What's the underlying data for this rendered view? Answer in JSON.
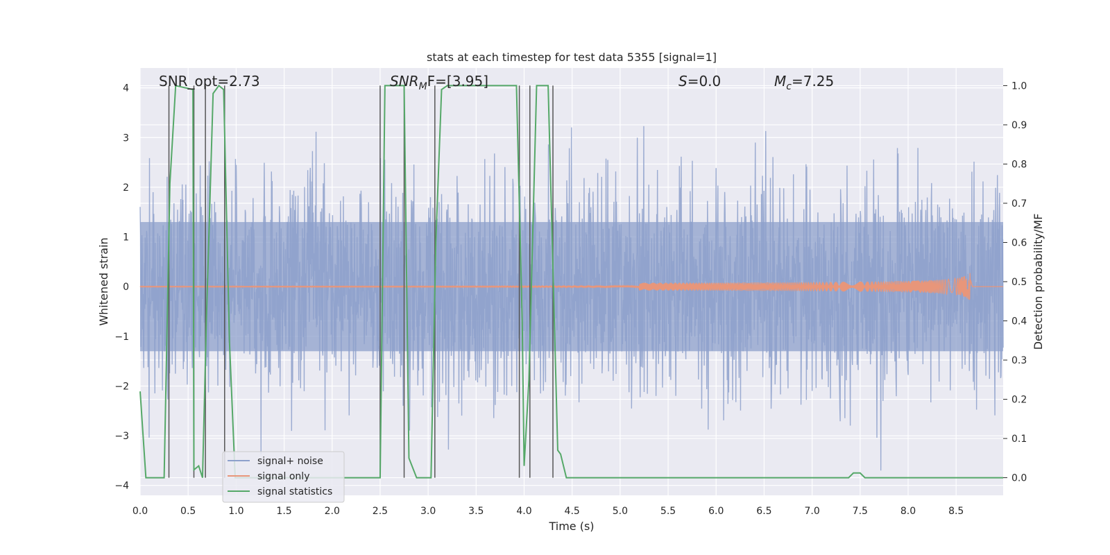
{
  "chart_data": {
    "type": "line",
    "title": "stats at each timestep for test data 5355 [signal=1]",
    "xlabel": "Time (s)",
    "ylabel_left": "Whitened strain",
    "ylabel_right": "Detection probability/MF",
    "xlim": [
      0.0,
      8.99
    ],
    "ylim_left": [
      -4.2,
      4.4
    ],
    "ylim_right": [
      -0.045,
      1.045
    ],
    "x_ticks": [
      "0.0",
      "0.5",
      "1.0",
      "1.5",
      "2.0",
      "2.5",
      "3.0",
      "3.5",
      "4.0",
      "4.5",
      "5.0",
      "5.5",
      "6.0",
      "6.5",
      "7.0",
      "7.5",
      "8.0",
      "8.5"
    ],
    "y_ticks_left": [
      "4",
      "3",
      "2",
      "1",
      "0",
      "−1",
      "−2",
      "−3",
      "−4"
    ],
    "y_ticks_right": [
      "1.0",
      "0.9",
      "0.8",
      "0.7",
      "0.6",
      "0.5",
      "0.4",
      "0.3",
      "0.2",
      "0.1",
      "0.0"
    ],
    "grid": true,
    "legend_placement": "lower-left",
    "annotations": {
      "snr_opt": "SNR_opt=2.73",
      "snr_mf_sym": "SNR",
      "snr_mf_sub": "M",
      "snr_mf_rest": "F=[3.95]",
      "s_sym": "S",
      "s_rest": "=0.0",
      "mc_sym": "M",
      "mc_sub": "c",
      "mc_rest": "=7.25"
    },
    "series": [
      {
        "name": "signal+ noise",
        "color": "#8da0cb",
        "axis": "left",
        "description_values": "whitened noise, approx. gaussian, std 1, range -3.7 to 3.5 over 0.0-8.99 s"
      },
      {
        "name": "signal only",
        "color": "#e8967a",
        "axis": "left",
        "chirp_end_time": 8.65,
        "peak_amplitude": 0.28
      },
      {
        "name": "signal statistics",
        "color": "#55a868",
        "axis": "right",
        "x": [
          0.0,
          0.06,
          0.25,
          0.31,
          0.37,
          0.55,
          0.56,
          0.61,
          0.65,
          0.69,
          0.76,
          0.82,
          0.87,
          0.93,
          0.99,
          2.5,
          2.55,
          2.75,
          2.8,
          2.88,
          3.03,
          3.08,
          3.14,
          3.2,
          3.92,
          3.98,
          4.0,
          4.05,
          4.13,
          4.25,
          4.35,
          4.38,
          4.44,
          7.38,
          7.43,
          7.5,
          7.55,
          8.99
        ],
        "y": [
          0.22,
          0.0,
          0.0,
          0.75,
          1.0,
          0.99,
          0.02,
          0.03,
          0.0,
          0.4,
          0.98,
          1.0,
          0.99,
          0.35,
          0.0,
          0.0,
          1.0,
          1.0,
          0.05,
          0.0,
          0.0,
          0.6,
          0.99,
          1.0,
          1.0,
          0.4,
          0.03,
          0.25,
          1.0,
          1.0,
          0.07,
          0.06,
          0.0,
          0.0,
          0.012,
          0.012,
          0.0,
          0.0
        ]
      }
    ],
    "vertical_lines_x": [
      0.3,
      0.56,
      0.68,
      0.88,
      2.5,
      2.75,
      3.07,
      3.95,
      4.06,
      4.3
    ]
  },
  "colors": {
    "background": "#eaeaf2",
    "grid": "#ffffff",
    "noise": "#8da0cb",
    "signal": "#e8967a",
    "stats": "#55a868",
    "vline": "#555555"
  }
}
